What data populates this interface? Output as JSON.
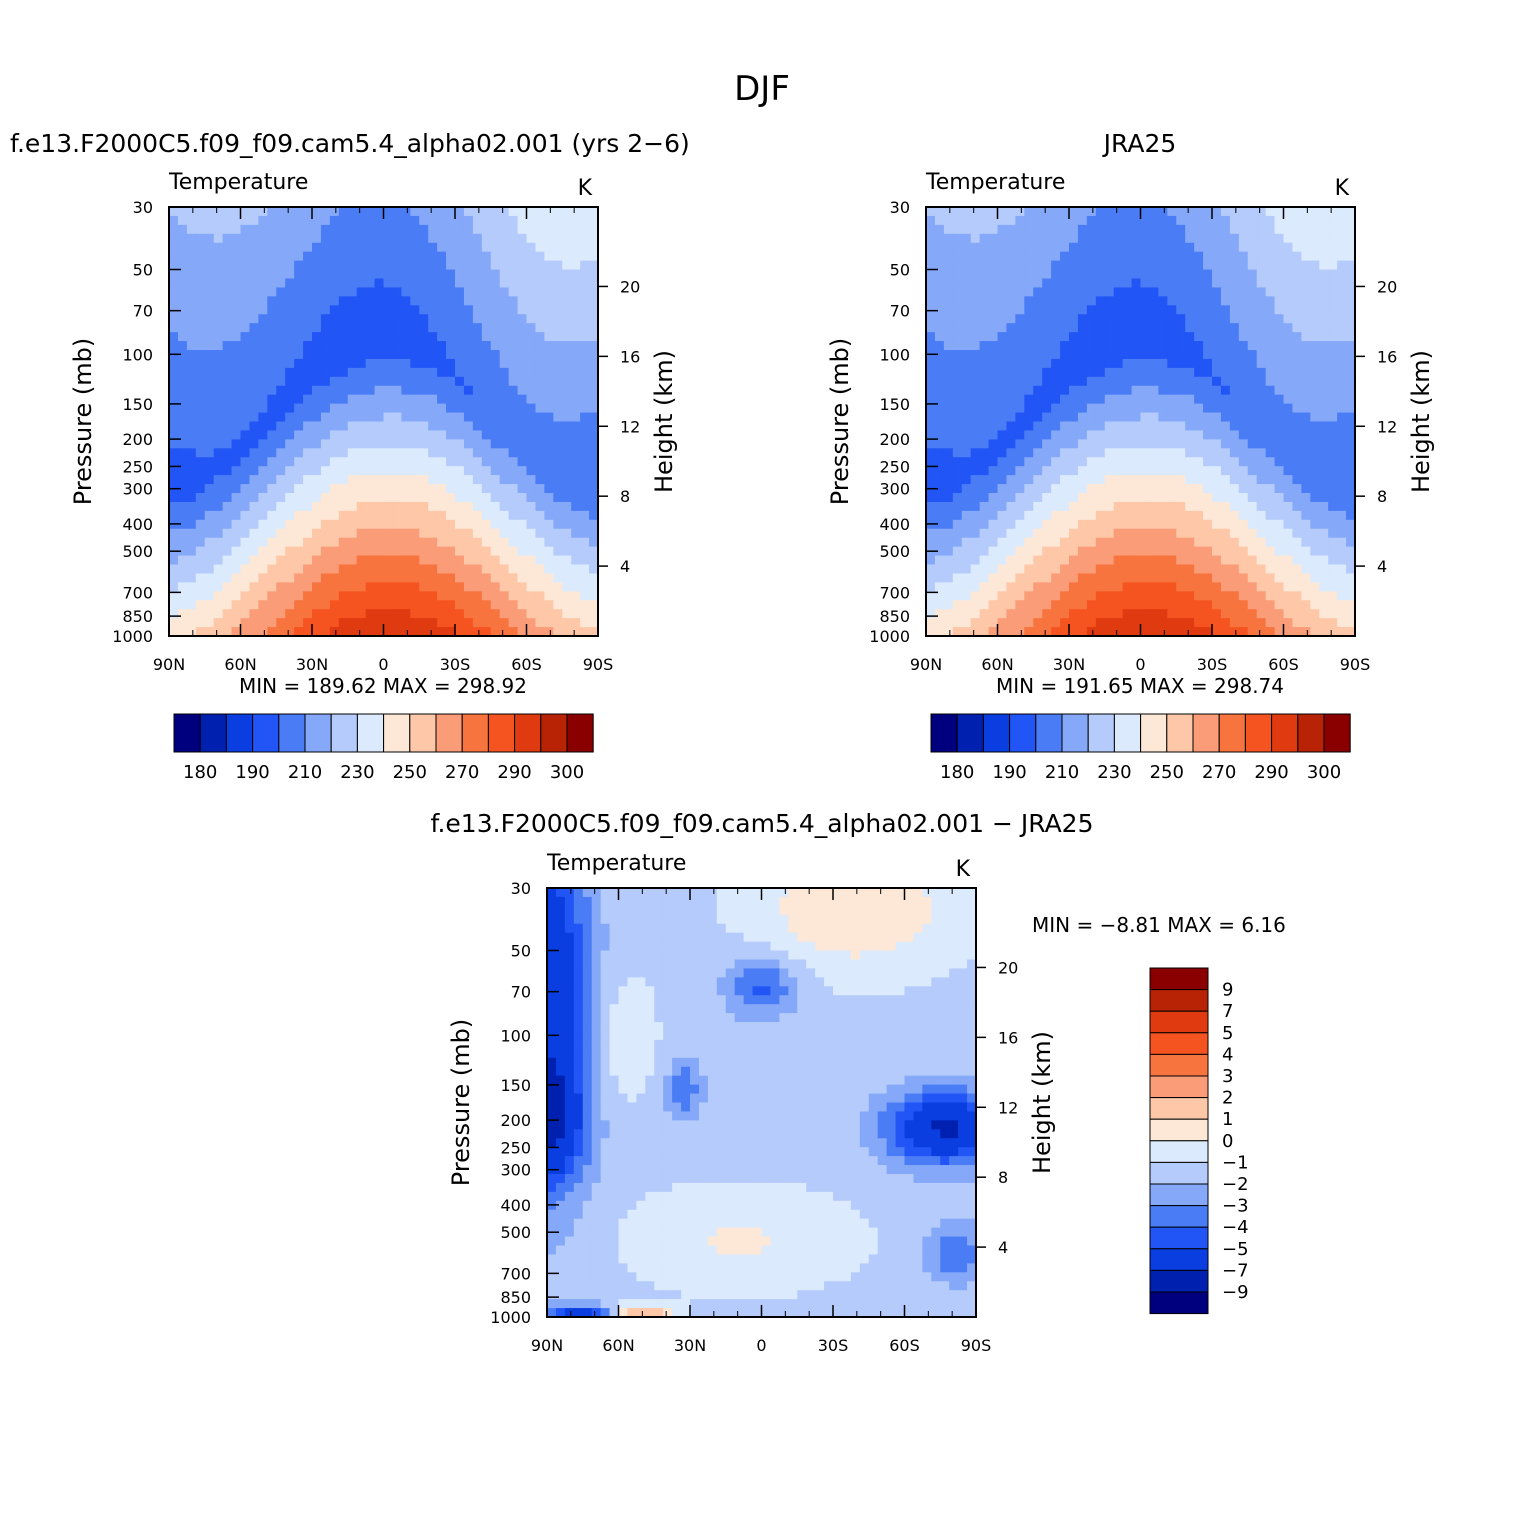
{
  "figure": {
    "title": "DJF"
  },
  "chart_data": [
    {
      "id": "model",
      "type": "heatmap",
      "panel_title": "f.e13.F2000C5.f09_f09.cam5.4_alpha02.001 (yrs 2−6)",
      "subtitle_left": "Temperature",
      "subtitle_right": "K",
      "ylabel": "Pressure (mb)",
      "ylabel_right": "Height (km)",
      "x_ticks": [
        "90N",
        "60N",
        "30N",
        "0",
        "30S",
        "60S",
        "90S"
      ],
      "y_ticks": [
        "30",
        "50",
        "70",
        "100",
        "150",
        "200",
        "250",
        "300",
        "400",
        "500",
        "700",
        "850",
        "1000"
      ],
      "y_right_ticks": [
        "20",
        "16",
        "12",
        "8",
        "4"
      ],
      "stats": "MIN = 189.62   MAX = 298.92",
      "min": 189.62,
      "max": 298.92,
      "colorbar_labels": [
        "180",
        "190",
        "210",
        "230",
        "250",
        "270",
        "290",
        "300"
      ]
    },
    {
      "id": "obs",
      "type": "heatmap",
      "panel_title": "JRA25",
      "subtitle_left": "Temperature",
      "subtitle_right": "K",
      "ylabel": "Pressure (mb)",
      "ylabel_right": "Height (km)",
      "x_ticks": [
        "90N",
        "60N",
        "30N",
        "0",
        "30S",
        "60S",
        "90S"
      ],
      "y_ticks": [
        "30",
        "50",
        "70",
        "100",
        "150",
        "200",
        "250",
        "300",
        "400",
        "500",
        "700",
        "850",
        "1000"
      ],
      "y_right_ticks": [
        "20",
        "16",
        "12",
        "8",
        "4"
      ],
      "stats": "MIN = 191.65   MAX = 298.74",
      "min": 191.65,
      "max": 298.74,
      "colorbar_labels": [
        "180",
        "190",
        "210",
        "230",
        "250",
        "270",
        "290",
        "300"
      ]
    },
    {
      "id": "diff",
      "type": "heatmap",
      "panel_title": "f.e13.F2000C5.f09_f09.cam5.4_alpha02.001 − JRA25",
      "subtitle_left": "Temperature",
      "subtitle_right": "K",
      "ylabel": "Pressure (mb)",
      "ylabel_right": "Height (km)",
      "x_ticks": [
        "90N",
        "60N",
        "30N",
        "0",
        "30S",
        "60S",
        "90S"
      ],
      "y_ticks": [
        "30",
        "50",
        "70",
        "100",
        "150",
        "200",
        "250",
        "300",
        "400",
        "500",
        "700",
        "850",
        "1000"
      ],
      "y_right_ticks": [
        "20",
        "16",
        "12",
        "8",
        "4"
      ],
      "stats": "MIN =   −8.81    MAX =      6.16",
      "min": -8.81,
      "max": 6.16,
      "colorbar_labels": [
        "9",
        "7",
        "5",
        "4",
        "3",
        "2",
        "1",
        "0",
        "−1",
        "−2",
        "−3",
        "−4",
        "−5",
        "−7",
        "−9"
      ]
    }
  ],
  "colors": {
    "temp_scale": [
      "#00007f",
      "#0020b0",
      "#0a3ee0",
      "#2255f5",
      "#4a7cf5",
      "#85a8f8",
      "#b5cbfb",
      "#dbeafc",
      "#fde8d8",
      "#fdc7a8",
      "#fb9c78",
      "#f8743f",
      "#f55420",
      "#e03a10",
      "#b82205",
      "#8a0000"
    ],
    "diff_scale_top_to_bottom": [
      "#8a0000",
      "#b82205",
      "#e03a10",
      "#f55420",
      "#f8743f",
      "#fb9c78",
      "#fdc7a8",
      "#fde8d8",
      "#dbeafc",
      "#b5cbfb",
      "#85a8f8",
      "#4a7cf5",
      "#2255f5",
      "#0a3ee0",
      "#0020b0",
      "#00007f"
    ]
  }
}
